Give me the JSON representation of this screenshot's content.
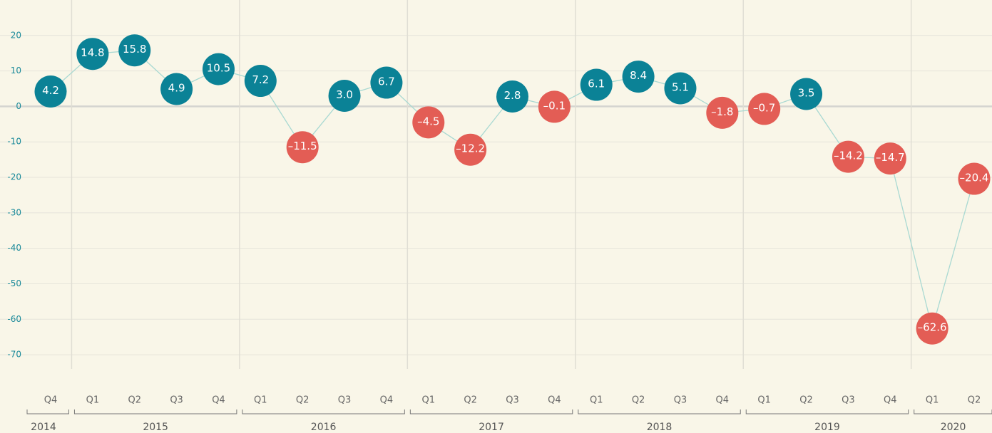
{
  "chart_data": {
    "type": "line",
    "groups": [
      {
        "label": "2014",
        "categories": [
          "Q4"
        ]
      },
      {
        "label": "2015",
        "categories": [
          "Q1",
          "Q2",
          "Q3",
          "Q4"
        ]
      },
      {
        "label": "2016",
        "categories": [
          "Q1",
          "Q2",
          "Q3",
          "Q4"
        ]
      },
      {
        "label": "2017",
        "categories": [
          "Q1",
          "Q2",
          "Q3",
          "Q4"
        ]
      },
      {
        "label": "2018",
        "categories": [
          "Q1",
          "Q2",
          "Q3",
          "Q4"
        ]
      },
      {
        "label": "2019",
        "categories": [
          "Q1",
          "Q2",
          "Q3",
          "Q4"
        ]
      },
      {
        "label": "2020",
        "categories": [
          "Q1",
          "Q2"
        ]
      }
    ],
    "values": [
      4.2,
      14.8,
      15.8,
      4.9,
      10.5,
      7.2,
      -11.5,
      3.0,
      6.7,
      -4.5,
      -12.2,
      2.8,
      -0.1,
      6.1,
      8.4,
      5.1,
      -1.8,
      -0.7,
      3.5,
      -14.2,
      -14.7,
      -62.6,
      -20.4
    ],
    "value_labels": [
      "4.2",
      "14.8",
      "15.8",
      "4.9",
      "10.5",
      "7.2",
      "–11.5",
      "3.0",
      "6.7",
      "–4.5",
      "–12.2",
      "2.8",
      "–0.1",
      "6.1",
      "8.4",
      "5.1",
      "–1.8",
      "–0.7",
      "3.5",
      "–14.2",
      "–14.7",
      "–62.6",
      "–20.4"
    ],
    "positive_color": "#0b8296",
    "negative_color": "#e35d55",
    "line_color": "#a9d9d2",
    "ylim": [
      -74,
      30
    ],
    "yticks": [
      20,
      10,
      0,
      -10,
      -20,
      -30,
      -40,
      -50,
      -60,
      -70
    ],
    "grid": true
  }
}
